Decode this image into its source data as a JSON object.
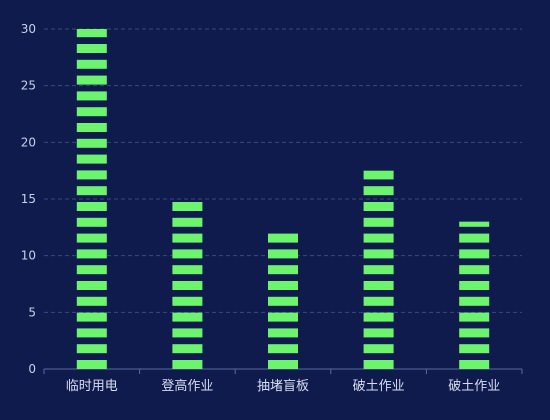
{
  "chart_data": {
    "type": "bar",
    "categories": [
      "临时用电",
      "登高作业",
      "抽堵盲板",
      "破土作业",
      "破土作业"
    ],
    "values": [
      30,
      15,
      12,
      17.5,
      13
    ],
    "ylim": [
      0,
      30
    ],
    "yticks": [
      0,
      5,
      10,
      15,
      20,
      25,
      30
    ],
    "grid": true,
    "bar_style": "segmented",
    "title": "",
    "xlabel": "",
    "ylabel": ""
  },
  "colors": {
    "background": "#101b4d",
    "bar": "#6cf56c",
    "grid": "#3a4a7e",
    "axis": "#5a6aa0",
    "tick_text": "#c8cfe8",
    "category_text": "#d8dcf0"
  }
}
